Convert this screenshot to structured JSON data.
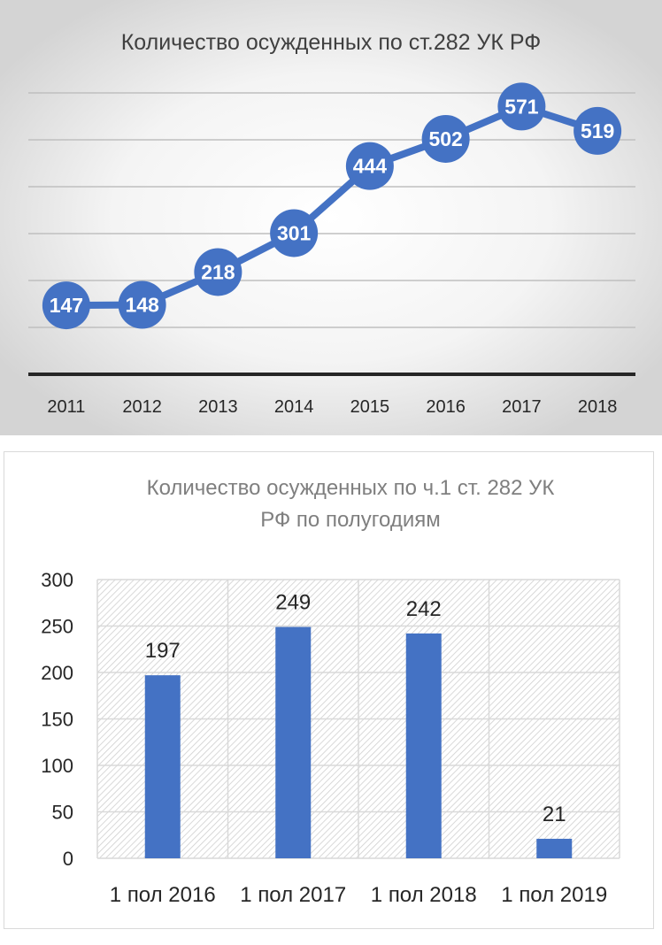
{
  "chart_data": [
    {
      "type": "line",
      "title": "Количество осужденных по ст.282 УК РФ",
      "categories": [
        "2011",
        "2012",
        "2013",
        "2014",
        "2015",
        "2016",
        "2017",
        "2018"
      ],
      "series": [
        {
          "values": [
            147,
            148,
            218,
            301,
            444,
            502,
            571,
            519
          ]
        }
      ],
      "ylim": [
        0,
        650
      ],
      "y_gridlines": [
        100,
        200,
        300,
        400,
        500,
        600
      ],
      "grid": true,
      "data_labels": true,
      "color": "#4472c4"
    },
    {
      "type": "bar",
      "title": "Количество осужденных по ч.1 ст. 282 УК РФ по полугодиям",
      "title_lines": [
        "Количество осужденных по ч.1 ст. 282 УК",
        "РФ по полугодиям"
      ],
      "categories": [
        "1 пол 2016",
        "1 пол 2017",
        "1 пол 2018",
        "1 пол 2019"
      ],
      "series": [
        {
          "values": [
            197,
            249,
            242,
            21
          ]
        }
      ],
      "ylim": [
        0,
        300
      ],
      "yticks": [
        "0",
        "50",
        "100",
        "150",
        "200",
        "250",
        "300"
      ],
      "grid": true,
      "data_labels": true,
      "color": "#4472c4"
    }
  ]
}
